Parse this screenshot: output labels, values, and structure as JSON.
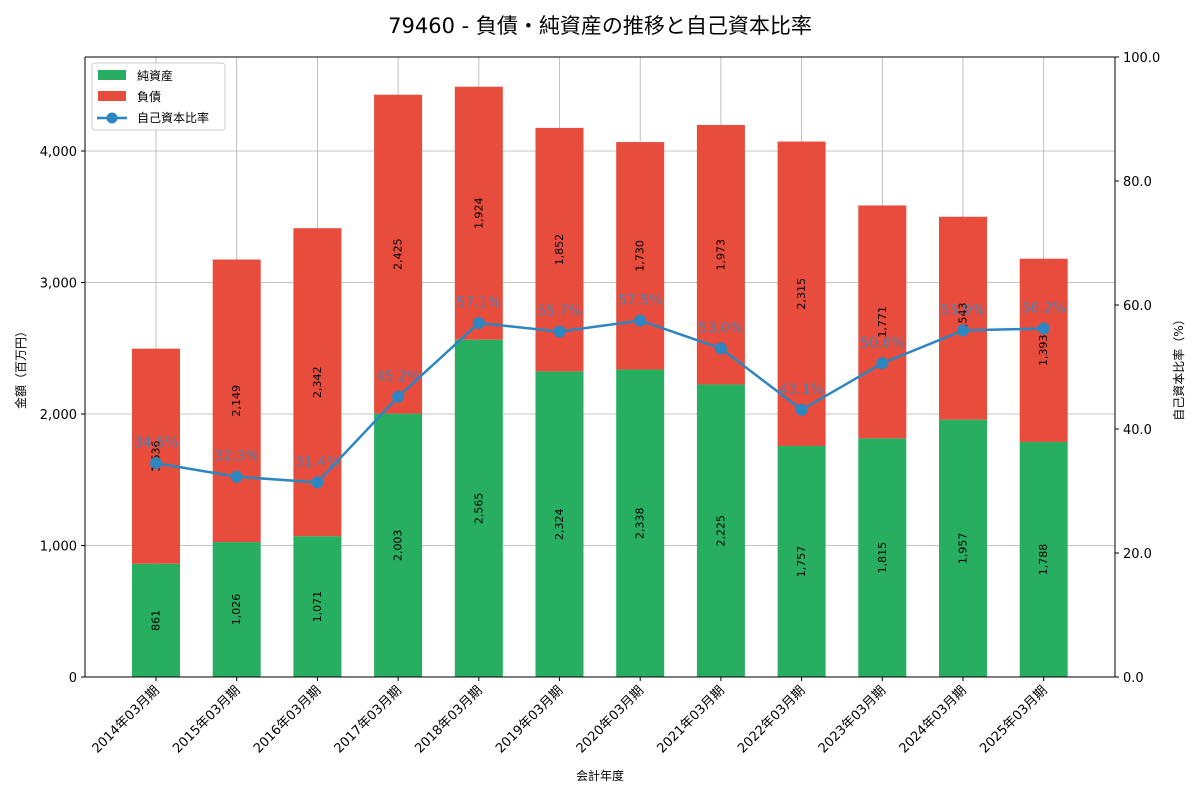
{
  "title": "79460 - 負債・純資産の推移と自己資本比率",
  "colors": {
    "equity": "#27ae60",
    "liabilities": "#e74c3c",
    "ratio": "#2e86c1"
  },
  "chart_data": {
    "type": "bar",
    "stacked": true,
    "title": "79460 - 負債・純資産の推移と自己資本比率",
    "xlabel": "会計年度",
    "ylabel": "金額（百万円）",
    "y2label": "自己資本比率（%）",
    "ylim": [
      0,
      4715
    ],
    "y2lim": [
      0,
      100
    ],
    "yticks": [
      "0",
      "1,000",
      "2,000",
      "3,000",
      "4,000"
    ],
    "y2ticks": [
      "0.0",
      "20.0",
      "40.0",
      "60.0",
      "80.0",
      "100.0"
    ],
    "grid": true,
    "legend_position": "upper left",
    "categories": [
      "2014年03月期",
      "2015年03月期",
      "2016年03月期",
      "2017年03月期",
      "2018年03月期",
      "2019年03月期",
      "2020年03月期",
      "2021年03月期",
      "2022年03月期",
      "2023年03月期",
      "2024年03月期",
      "2025年03月期"
    ],
    "series": [
      {
        "name": "純資産",
        "type": "bar",
        "axis": "left",
        "values": [
          861,
          1026,
          1071,
          2003,
          2565,
          2324,
          2338,
          2225,
          1757,
          1815,
          1957,
          1788
        ],
        "labels": [
          "861",
          "1,026",
          "1,071",
          "2,003",
          "2,565",
          "2,324",
          "2,338",
          "2,225",
          "1,757",
          "1,815",
          "1,957",
          "1,788"
        ]
      },
      {
        "name": "負債",
        "type": "bar",
        "axis": "left",
        "values": [
          1636,
          2149,
          2342,
          2425,
          1924,
          1852,
          1730,
          1973,
          2315,
          1771,
          1543,
          1393
        ],
        "labels": [
          "1,636",
          "2,149",
          "2,342",
          "2,425",
          "1,924",
          "1,852",
          "1,730",
          "1,973",
          "2,315",
          "1,771",
          "1,543",
          "1,393"
        ]
      },
      {
        "name": "自己資本比率",
        "type": "line",
        "axis": "right",
        "values": [
          34.5,
          32.3,
          31.4,
          45.2,
          57.1,
          55.7,
          57.5,
          53.0,
          43.1,
          50.6,
          55.9,
          56.2
        ],
        "labels": [
          "34.5%",
          "32.3%",
          "31.4%",
          "45.2%",
          "57.1%",
          "55.7%",
          "57.5%",
          "53.0%",
          "43.1%",
          "50.6%",
          "55.9%",
          "56.2%"
        ]
      }
    ]
  }
}
